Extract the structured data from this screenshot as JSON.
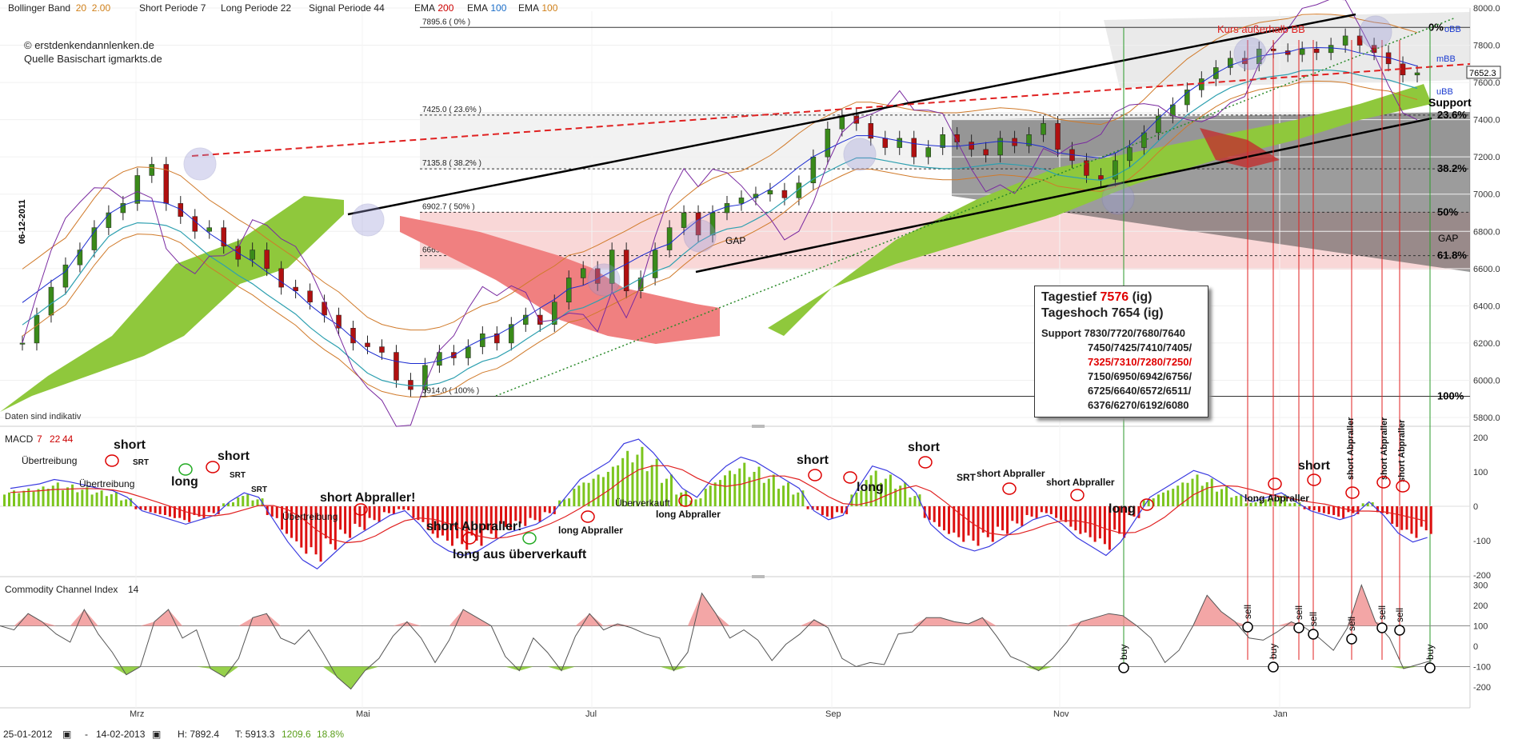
{
  "header": {
    "bb_label": "Bollinger Band",
    "bb_p1": "20",
    "bb_p2": "2.00",
    "short_label": "Short Periode",
    "short_val": "7",
    "long_label": "Long Periode",
    "long_val": "22",
    "signal_label": "Signal Periode",
    "signal_val": "44",
    "ema1_label": "EMA",
    "ema1_val": "200",
    "ema2_label": "EMA",
    "ema2_val": "100",
    "ema3_label": "EMA",
    "ema3_val": "100"
  },
  "copyright": [
    "© erstdenkendannlenken.de",
    "Quelle Basischart igmarkts.de"
  ],
  "footer": {
    "start": "25-01-2012",
    "dash": "-",
    "end": "14-02-2013",
    "high": "H: 7892.4",
    "low": "T: 5913.3",
    "diff": "1209.6",
    "pct": "18.8%"
  },
  "infobox": {
    "tief_label": "Tagestief",
    "tief_val": "7576",
    "tief_suffix": "(ig)",
    "hoch_label": "Tageshoch 7654 (ig)",
    "support_label": "Support",
    "lines": [
      "7830/7720/7680/7640",
      "7450/7425/7410/7405/",
      "7325/7310/7280/7250/",
      "7150/6950/6942/6756/",
      "6725/6640/6572/6511/",
      "6376/6270/6192/6080"
    ]
  },
  "colors": {
    "cloud_green": "#8fc83c",
    "cloud_red": "#f08080",
    "macd_pos": "#7cc51e",
    "macd_neg": "#dd1111",
    "candle_up": "#3a8a1a",
    "candle_down": "#b01010",
    "bb_line": "#d07a2a",
    "ema200": "#c02020",
    "ema100": "#2ea0b0",
    "ema100b": "#c07030"
  },
  "chart_data": [
    {
      "type": "candlestick",
      "title": "",
      "ylim": [
        5800,
        8000
      ],
      "y_ticks": [
        "8000.0",
        "7800.0",
        "7600.0",
        "7400.0",
        "7200.0",
        "7000.0",
        "6800.0",
        "6600.0",
        "6400.0",
        "6200.0",
        "6000.0",
        "5800.0"
      ],
      "x_ticks": [
        "Mrz",
        "Mai",
        "Jul",
        "Sep",
        "Nov",
        "Jan"
      ],
      "last_price": "7652.3",
      "date_marker": "06-12-2011",
      "fib_levels": [
        {
          "label": "7895.6 ( 0% )",
          "pct": "0%",
          "value": 7895.6
        },
        {
          "label": "7425.0 ( 23.6% )",
          "pct": "23.6%",
          "value": 7425.0
        },
        {
          "label": "7135.8 ( 38.2% )",
          "pct": "38.2%",
          "value": 7135.8
        },
        {
          "label": "6902.7 ( 50% )",
          "pct": "50%",
          "value": 6902.7
        },
        {
          "label": "6669.5 ( 61.8% )",
          "pct": "61.8%",
          "value": 6669.5
        },
        {
          "label": "5914.0 ( 100% )",
          "pct": "100%",
          "value": 5914.0
        }
      ],
      "series": [
        {
          "name": "close",
          "values": [
            6200,
            6350,
            6500,
            6620,
            6700,
            6820,
            6900,
            6950,
            7100,
            7160,
            6950,
            6880,
            6800,
            6820,
            6720,
            6650,
            6700,
            6600,
            6500,
            6480,
            6420,
            6350,
            6280,
            6200,
            6180,
            6150,
            6000,
            5950,
            6080,
            6150,
            6120,
            6180,
            6250,
            6200,
            6300,
            6350,
            6300,
            6420,
            6550,
            6600,
            6520,
            6700,
            6480,
            6550,
            6700,
            6820,
            6900,
            6780,
            6900,
            6950,
            6980,
            7000,
            7020,
            6980,
            7060,
            7200,
            7350,
            7420,
            7380,
            7300,
            7250,
            7300,
            7200,
            7250,
            7320,
            7280,
            7240,
            7210,
            7300,
            7260,
            7320,
            7380,
            7240,
            7180,
            7100,
            7080,
            7180,
            7250,
            7330,
            7420,
            7480,
            7560,
            7620,
            7680,
            7730,
            7700,
            7780,
            7770,
            7750,
            7780,
            7760,
            7800,
            7850,
            7800,
            7760,
            7700,
            7640,
            7652
          ]
        }
      ],
      "annotations": [
        "Kurs außerhalb BB",
        "oBB",
        "mBB",
        "uBB",
        "Support",
        "GAP",
        "GAP",
        "Daten sind indikativ"
      ]
    },
    {
      "type": "bar",
      "title": "MACD",
      "params": [
        "7",
        "22",
        "44"
      ],
      "ylim": [
        -250,
        250
      ],
      "y_ticks": [
        "200",
        "100",
        "0",
        "-100",
        "-200"
      ],
      "annotations": [
        "Übertreibung",
        "Übertreibung",
        "short",
        "SRT",
        "long",
        "short",
        "SRT",
        "SRT",
        "short Abpraller!",
        "Übertreibung",
        "short Abpraller!",
        "long aus überverkauft",
        "long Abpraller",
        "Überverkauft",
        "long Abpraller",
        "short",
        "long",
        "short",
        "SRT",
        "short Abpraller",
        "short Abpraller",
        "long",
        "long Abpraller",
        "short",
        "short Abpraller",
        "short Abpraller",
        "short Abpraller"
      ],
      "series": [
        {
          "name": "histogram",
          "values": [
            40,
            45,
            50,
            60,
            55,
            48,
            40,
            35,
            20,
            -10,
            -20,
            -30,
            -40,
            -30,
            -20,
            10,
            30,
            20,
            -30,
            -80,
            -120,
            -140,
            -110,
            -80,
            -60,
            -40,
            -20,
            -10,
            -40,
            -80,
            -100,
            -110,
            -100,
            -80,
            -60,
            -50,
            -40,
            -20,
            20,
            60,
            80,
            100,
            140,
            150,
            120,
            80,
            40,
            20,
            60,
            90,
            110,
            100,
            80,
            60,
            40,
            -10,
            -30,
            -20,
            40,
            90,
            80,
            60,
            30,
            -40,
            -70,
            -90,
            -100,
            -90,
            -70,
            -50,
            -30,
            -20,
            -40,
            -70,
            -90,
            -110,
            -80,
            -30,
            20,
            40,
            60,
            80,
            70,
            50,
            30,
            10,
            20,
            30,
            10,
            -10,
            -20,
            -30,
            -20,
            10,
            -20,
            -60,
            -80,
            -70
          ]
        }
      ]
    },
    {
      "type": "area",
      "title": "Commodity Channel Index",
      "params": [
        "14"
      ],
      "ylim": [
        -250,
        350
      ],
      "y_ticks": [
        "300",
        "200",
        "100",
        "0",
        "-100",
        "-200"
      ],
      "signals": [
        "buy",
        "buy",
        "sell",
        "sell",
        "sell",
        "sell",
        "sell",
        "sell",
        "buy"
      ],
      "series": [
        {
          "name": "CCI",
          "values": [
            100,
            80,
            160,
            120,
            60,
            20,
            180,
            60,
            -30,
            -140,
            -100,
            120,
            180,
            40,
            80,
            -110,
            -150,
            -60,
            140,
            160,
            40,
            10,
            80,
            -30,
            -150,
            -210,
            -120,
            -60,
            50,
            120,
            40,
            -80,
            30,
            180,
            140,
            100,
            -50,
            -120,
            40,
            -30,
            -120,
            50,
            160,
            80,
            110,
            90,
            60,
            40,
            -120,
            -30,
            260,
            160,
            40,
            80,
            30,
            -70,
            10,
            60,
            130,
            90,
            -60,
            -100,
            -80,
            -90,
            60,
            70,
            140,
            140,
            120,
            110,
            140,
            50,
            -50,
            -80,
            -120,
            -60,
            20,
            120,
            140,
            160,
            150,
            100,
            40,
            -80,
            -20,
            100,
            250,
            170,
            120,
            40,
            30,
            70,
            120,
            90,
            40,
            -20,
            90,
            300,
            120,
            40,
            -110,
            -90,
            -70
          ]
        }
      ]
    }
  ]
}
